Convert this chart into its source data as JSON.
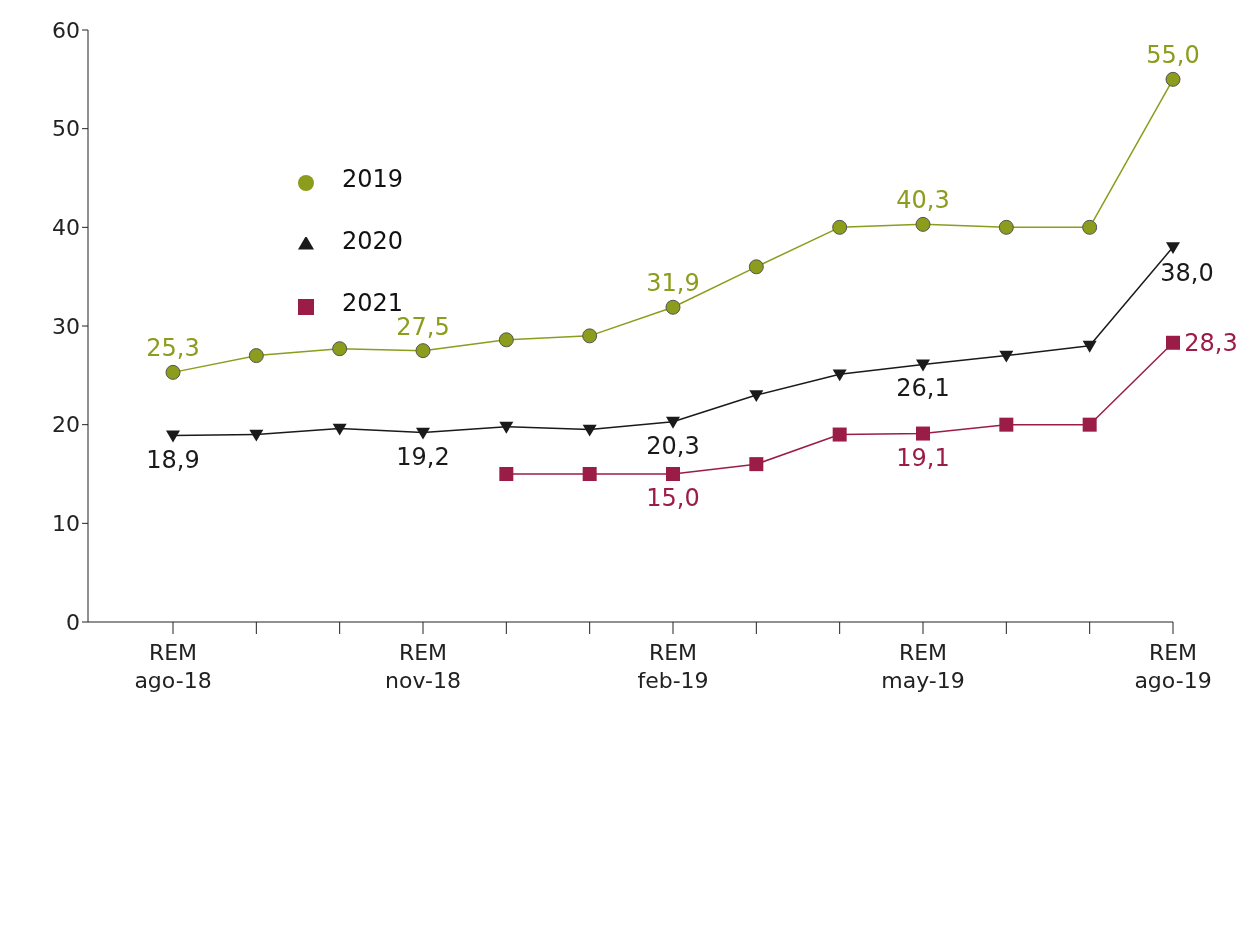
{
  "chart_data": {
    "type": "line",
    "categories": [
      "REM\nago-18",
      null,
      null,
      "REM\nnov-18",
      null,
      null,
      "REM\nfeb-19",
      null,
      null,
      "REM\nmay-19",
      null,
      null,
      "REM\nago-19"
    ],
    "series": [
      {
        "name": "2019",
        "color": "#8c9c1c",
        "marker": "circle",
        "values": [
          25.3,
          27.0,
          27.7,
          27.5,
          28.6,
          29.0,
          31.9,
          36.0,
          40.0,
          40.3,
          40.0,
          40.0,
          55.0
        ],
        "value_labels": [
          "25,3",
          null,
          null,
          "27,5",
          null,
          null,
          "31,9",
          null,
          null,
          "40,3",
          null,
          null,
          "55,0"
        ]
      },
      {
        "name": "2020",
        "color": "#1a1a1a",
        "marker": "triangle",
        "values": [
          18.9,
          19.0,
          19.6,
          19.2,
          19.8,
          19.5,
          20.3,
          23.0,
          25.1,
          26.1,
          27.0,
          28.0,
          38.0
        ],
        "value_labels": [
          "18,9",
          null,
          null,
          "19,2",
          null,
          null,
          "20,3",
          null,
          null,
          "26,1",
          null,
          null,
          "38,0"
        ]
      },
      {
        "name": "2021",
        "color": "#9c1c48",
        "marker": "square",
        "values": [
          null,
          null,
          null,
          null,
          15.0,
          15.0,
          15.0,
          16.0,
          19.0,
          19.1,
          20.0,
          20.0,
          28.3
        ],
        "value_labels": [
          null,
          null,
          null,
          null,
          null,
          null,
          "15,0",
          null,
          null,
          "19,1",
          null,
          null,
          "28,3"
        ]
      }
    ],
    "ylim": [
      0,
      60
    ],
    "yticks": [
      0,
      10,
      20,
      30,
      40,
      50,
      60
    ],
    "grid": false,
    "legend": "top left",
    "line_style": "solid"
  }
}
